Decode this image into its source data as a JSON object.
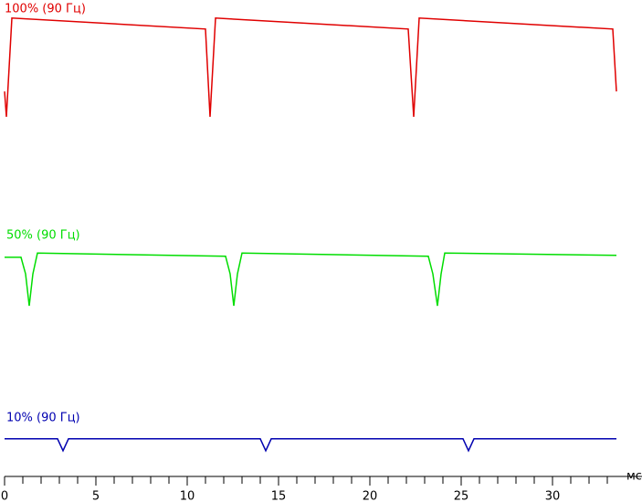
{
  "chart_data": {
    "type": "line",
    "x_label": "мс",
    "xlim": [
      0,
      34.9
    ],
    "ylim": [
      0,
      100
    ],
    "xticks": [
      0,
      5,
      10,
      15,
      20,
      25,
      30
    ],
    "xminorticks": [
      1,
      2,
      3,
      4,
      6,
      7,
      8,
      9,
      11,
      12,
      13,
      14,
      16,
      17,
      18,
      19,
      21,
      22,
      23,
      24,
      26,
      27,
      28,
      29,
      31,
      32,
      33
    ],
    "series": [
      {
        "name": "100% (90 Гц)",
        "color": "#e00000",
        "x": [
          0,
          0.1,
          0.4,
          11.0,
          11.25,
          11.55,
          22.1,
          22.4,
          22.7,
          33.3,
          33.5
        ],
        "values": [
          80.8,
          75.5,
          96.2,
          93.9,
          75.5,
          96.2,
          93.9,
          75.5,
          96.2,
          93.9,
          80.8
        ]
      },
      {
        "name": "50% (90 Гц)",
        "color": "#00dd00",
        "x": [
          0,
          0.9,
          1.15,
          1.35,
          1.55,
          1.8,
          12.1,
          12.35,
          12.55,
          12.75,
          13.0,
          23.2,
          23.45,
          23.7,
          23.9,
          24.1,
          33.5
        ],
        "values": [
          46.0,
          46.0,
          42.5,
          35.8,
          42.5,
          46.9,
          46.2,
          42.5,
          35.8,
          42.5,
          46.9,
          46.2,
          42.5,
          35.8,
          42.5,
          46.9,
          46.4
        ]
      },
      {
        "name": "10% (90 Гц)",
        "color": "#0000b0",
        "x": [
          0,
          2.9,
          3.2,
          3.5,
          14.0,
          14.3,
          14.6,
          25.1,
          25.4,
          25.7,
          33.5
        ],
        "values": [
          7.9,
          7.9,
          5.4,
          7.9,
          7.9,
          5.4,
          7.9,
          7.9,
          5.4,
          7.9,
          7.9
        ]
      }
    ]
  }
}
